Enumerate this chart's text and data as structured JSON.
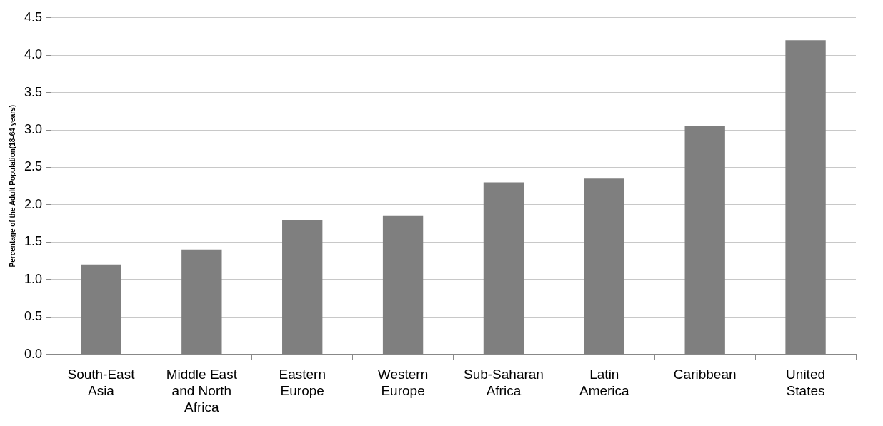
{
  "chart_data": {
    "type": "bar",
    "ylabel": "Percentage of the Adult Population(18-64 years)",
    "categories": [
      "South-East Asia",
      "Middle East and North Africa",
      "Eastern Europe",
      "Western Europe",
      "Sub-Saharan Africa",
      "Latin America",
      "Caribbean",
      "United States"
    ],
    "values": [
      1.2,
      1.4,
      1.8,
      1.85,
      2.3,
      2.35,
      3.05,
      4.2
    ],
    "color": "#7f7f7f",
    "ylim": [
      0,
      4.5
    ],
    "yticks": [
      {
        "value": 0,
        "label": "0.0"
      },
      {
        "value": 0.5,
        "label": "0.5"
      },
      {
        "value": 1,
        "label": "1.0"
      },
      {
        "value": 1.5,
        "label": "1.5"
      },
      {
        "value": 2,
        "label": "2.0"
      },
      {
        "value": 2.5,
        "label": "2.5"
      },
      {
        "value": 3,
        "label": "3.0"
      },
      {
        "value": 3.5,
        "label": "3.5"
      },
      {
        "value": 4,
        "label": "4.0"
      },
      {
        "value": 4.5,
        "label": "4.5"
      }
    ],
    "grid": "y",
    "legend": false
  }
}
